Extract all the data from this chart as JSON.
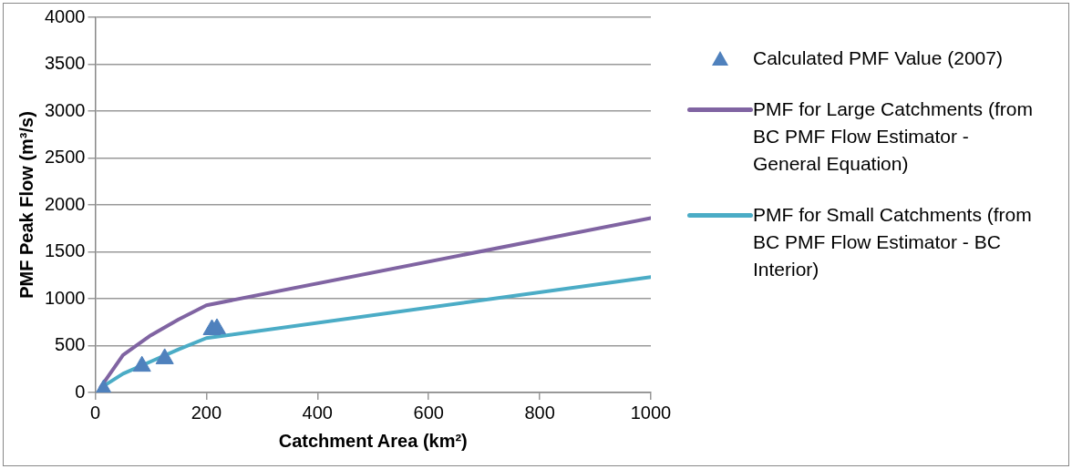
{
  "chart_data": {
    "type": "line",
    "xlabel": "Catchment Area (km²)",
    "ylabel": "PMF Peak Flow (m³/s)",
    "xlim": [
      0,
      1000
    ],
    "ylim": [
      0,
      4000
    ],
    "xticks": [
      0,
      200,
      400,
      600,
      800,
      1000
    ],
    "yticks": [
      0,
      500,
      1000,
      1500,
      2000,
      2500,
      3000,
      3500,
      4000
    ],
    "grid": "y",
    "legend": "right",
    "series": [
      {
        "name": "Calculated PMF Value (2007)",
        "type": "scatter",
        "marker": "triangle",
        "color": "#4f81bd",
        "x": [
          15,
          84,
          125,
          210,
          219
        ],
        "values": [
          30,
          280,
          360,
          670,
          680
        ]
      },
      {
        "name": "PMF for Large Catchments (from BC PMF Flow Estimator - General Equation)",
        "marker": "none",
        "color": "#8064a2",
        "x": [
          10,
          50,
          100,
          150,
          200,
          1000
        ],
        "values": [
          60,
          400,
          610,
          780,
          930,
          1860
        ]
      },
      {
        "name": "PMF for Small Catchments (from BC PMF Flow Estimator - BC Interior)",
        "marker": "none",
        "color": "#4bacc6",
        "x": [
          10,
          50,
          100,
          150,
          200,
          1000
        ],
        "values": [
          50,
          200,
          330,
          460,
          580,
          1230
        ]
      }
    ]
  }
}
